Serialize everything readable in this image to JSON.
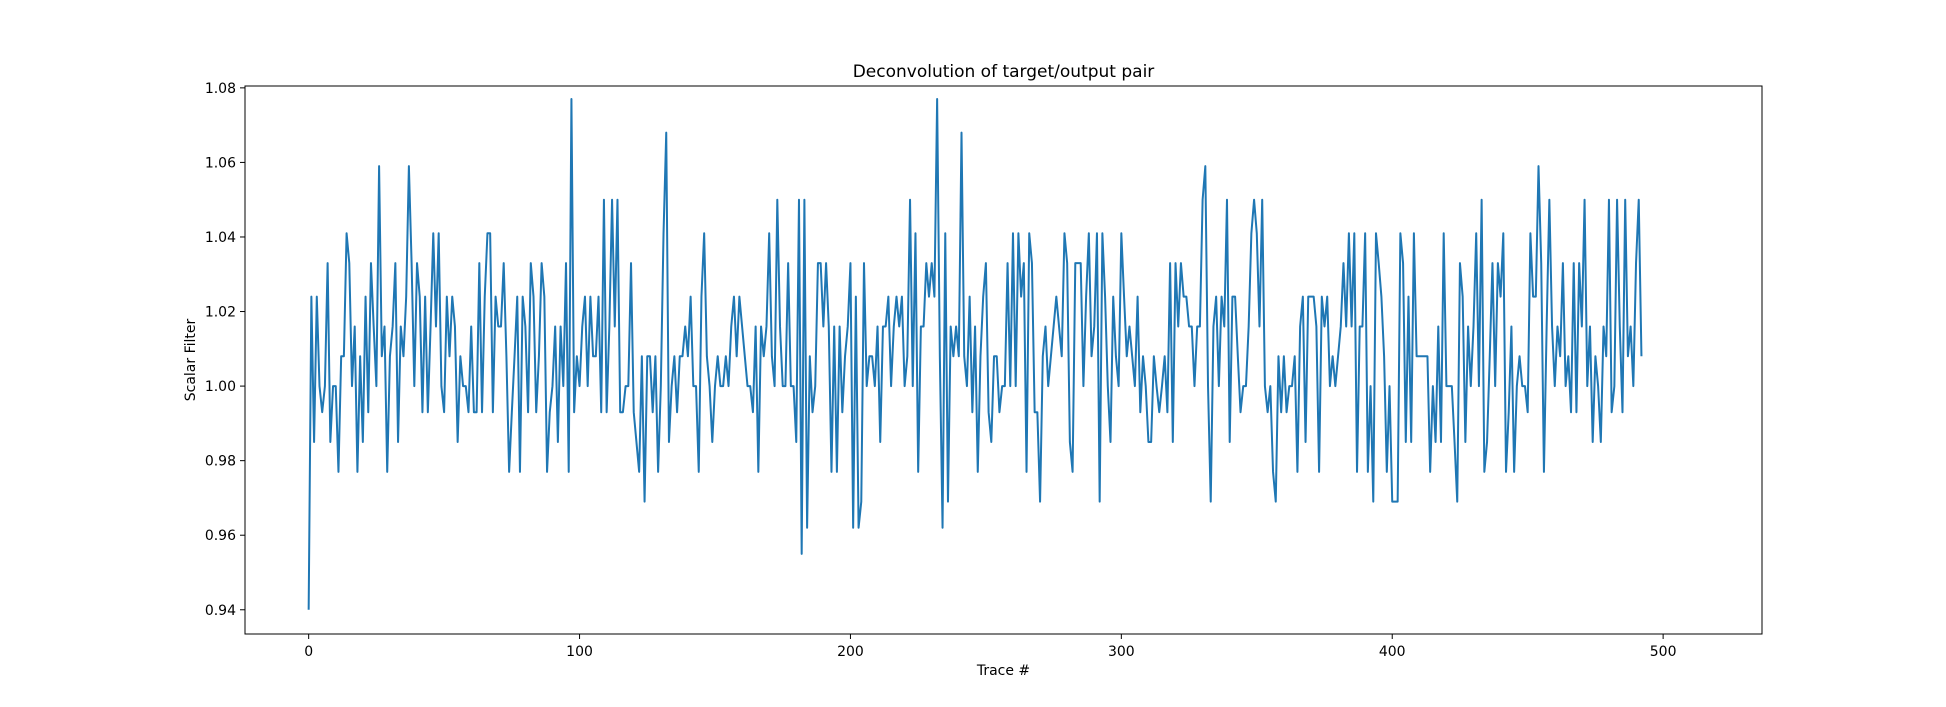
{
  "chart_data": {
    "type": "line",
    "title": "Deconvolution of target/output pair",
    "xlabel": "Trace #",
    "ylabel": "Scalar Filter",
    "xlim": [
      -23.5,
      536.5
    ],
    "ylim": [
      0.9335,
      1.0805
    ],
    "xticks": [
      0,
      100,
      200,
      300,
      400,
      500
    ],
    "yticks": [
      0.94,
      0.96,
      0.98,
      1.0,
      1.02,
      1.04,
      1.06,
      1.08
    ],
    "ytick_labels": [
      "0.94",
      "0.96",
      "0.98",
      "1.00",
      "1.02",
      "1.04",
      "1.06",
      "1.08"
    ],
    "grid": false,
    "line_color": "#1f77b4",
    "series": [
      {
        "x_start": 0,
        "x_step": 1,
        "values": [
          0.94,
          1.024,
          0.985,
          1.024,
          1.0,
          0.993,
          1.0,
          1.033,
          0.985,
          1.0,
          1.0,
          0.977,
          1.008,
          1.008,
          1.041,
          1.033,
          1.0,
          1.016,
          0.977,
          1.008,
          0.985,
          1.024,
          0.993,
          1.033,
          1.016,
          1.0,
          1.059,
          1.008,
          1.016,
          0.977,
          1.008,
          1.016,
          1.033,
          0.985,
          1.016,
          1.008,
          1.024,
          1.059,
          1.033,
          1.0,
          1.033,
          1.024,
          0.993,
          1.024,
          0.993,
          1.016,
          1.041,
          1.016,
          1.041,
          1.0,
          0.993,
          1.024,
          1.008,
          1.024,
          1.016,
          0.985,
          1.008,
          1.0,
          1.0,
          0.993,
          1.016,
          0.993,
          0.993,
          1.033,
          0.993,
          1.024,
          1.041,
          1.041,
          0.993,
          1.024,
          1.016,
          1.016,
          1.033,
          1.008,
          0.977,
          0.993,
          1.008,
          1.024,
          0.977,
          1.024,
          1.016,
          0.993,
          1.033,
          1.024,
          0.993,
          1.008,
          1.033,
          1.024,
          0.977,
          0.993,
          1.0,
          1.016,
          0.985,
          1.016,
          1.0,
          1.033,
          0.977,
          1.077,
          0.993,
          1.008,
          1.0,
          1.016,
          1.024,
          1.0,
          1.024,
          1.008,
          1.008,
          1.024,
          0.993,
          1.05,
          0.993,
          1.016,
          1.05,
          1.016,
          1.05,
          0.993,
          0.993,
          1.0,
          1.0,
          1.033,
          0.993,
          0.985,
          0.977,
          1.008,
          0.969,
          1.008,
          1.008,
          0.993,
          1.008,
          0.977,
          1.0,
          1.041,
          1.068,
          0.985,
          1.0,
          1.008,
          0.993,
          1.008,
          1.008,
          1.016,
          1.008,
          1.024,
          1.0,
          1.0,
          0.977,
          1.024,
          1.041,
          1.008,
          1.0,
          0.985,
          1.0,
          1.008,
          1.0,
          1.0,
          1.008,
          1.0,
          1.016,
          1.024,
          1.008,
          1.024,
          1.016,
          1.008,
          1.0,
          1.0,
          0.993,
          1.016,
          0.977,
          1.016,
          1.008,
          1.016,
          1.041,
          1.008,
          1.0,
          1.05,
          1.016,
          1.0,
          1.0,
          1.033,
          1.0,
          1.0,
          0.985,
          1.05,
          0.955,
          1.05,
          0.962,
          1.008,
          0.993,
          1.0,
          1.033,
          1.033,
          1.016,
          1.033,
          1.016,
          0.977,
          1.016,
          0.977,
          1.016,
          0.993,
          1.008,
          1.016,
          1.033,
          0.962,
          1.024,
          0.962,
          0.969,
          1.033,
          1.0,
          1.008,
          1.008,
          1.0,
          1.016,
          0.985,
          1.016,
          1.016,
          1.024,
          1.0,
          1.016,
          1.024,
          1.016,
          1.024,
          1.0,
          1.008,
          1.05,
          1.0,
          1.041,
          0.977,
          1.016,
          1.016,
          1.033,
          1.024,
          1.033,
          1.024,
          1.077,
          1.008,
          0.962,
          1.041,
          0.969,
          1.016,
          1.008,
          1.016,
          1.008,
          1.068,
          1.008,
          1.0,
          1.024,
          0.993,
          1.016,
          0.977,
          1.008,
          1.024,
          1.033,
          0.993,
          0.985,
          1.008,
          1.008,
          0.993,
          1.0,
          1.0,
          1.033,
          1.0,
          1.041,
          1.0,
          1.041,
          1.024,
          1.033,
          0.977,
          1.041,
          1.033,
          0.993,
          0.993,
          0.969,
          1.008,
          1.016,
          1.0,
          1.008,
          1.016,
          1.024,
          1.016,
          1.008,
          1.041,
          1.033,
          0.985,
          0.977,
          1.033,
          1.033,
          1.033,
          1.0,
          1.024,
          1.041,
          1.008,
          1.016,
          1.041,
          0.969,
          1.041,
          1.024,
          1.0,
          0.985,
          1.024,
          1.008,
          1.0,
          1.041,
          1.024,
          1.008,
          1.016,
          1.008,
          1.0,
          1.024,
          0.993,
          1.008,
          1.0,
          0.985,
          0.985,
          1.008,
          1.0,
          0.993,
          1.0,
          1.008,
          0.993,
          1.033,
          0.985,
          1.033,
          1.016,
          1.033,
          1.024,
          1.024,
          1.016,
          1.016,
          1.0,
          1.016,
          1.016,
          1.05,
          1.059,
          1.0,
          0.969,
          1.016,
          1.024,
          1.0,
          1.024,
          1.016,
          1.05,
          0.985,
          1.024,
          1.024,
          1.008,
          0.993,
          1.0,
          1.0,
          1.016,
          1.041,
          1.05,
          1.041,
          1.016,
          1.05,
          1.0,
          0.993,
          1.0,
          0.977,
          0.969,
          1.008,
          0.993,
          1.008,
          0.993,
          1.0,
          1.0,
          1.008,
          0.977,
          1.016,
          1.024,
          0.985,
          1.024,
          1.024,
          1.024,
          1.016,
          0.977,
          1.024,
          1.016,
          1.024,
          1.0,
          1.008,
          1.0,
          1.008,
          1.016,
          1.033,
          1.016,
          1.041,
          1.016,
          1.041,
          0.977,
          1.016,
          1.016,
          1.041,
          0.977,
          1.0,
          0.969,
          1.041,
          1.033,
          1.024,
          1.008,
          0.977,
          1.0,
          0.969,
          0.969,
          0.969,
          1.041,
          1.033,
          0.985,
          1.024,
          0.985,
          1.041,
          1.008,
          1.008,
          1.008,
          1.008,
          1.008,
          0.977,
          1.0,
          0.985,
          1.016,
          0.985,
          1.041,
          1.0,
          1.0,
          1.0,
          0.985,
          0.969,
          1.033,
          1.024,
          0.985,
          1.016,
          1.0,
          1.016,
          1.041,
          1.0,
          1.05,
          0.977,
          0.985,
          1.008,
          1.033,
          1.0,
          1.033,
          1.024,
          1.041,
          0.977,
          0.993,
          1.016,
          0.977,
          1.0,
          1.008,
          1.0,
          1.0,
          0.993,
          1.041,
          1.024,
          1.024,
          1.059,
          1.033,
          0.977,
          1.016,
          1.05,
          1.016,
          1.0,
          1.016,
          1.008,
          1.033,
          1.0,
          1.008,
          0.993,
          1.033,
          0.993,
          1.033,
          1.016,
          1.05,
          1.0,
          1.016,
          0.985,
          1.008,
          1.0,
          0.985,
          1.016,
          1.008,
          1.05,
          0.993,
          1.0,
          1.05,
          1.016,
          0.993,
          1.05,
          1.008,
          1.016,
          1.0,
          1.033,
          1.05,
          1.008
        ]
      }
    ]
  }
}
